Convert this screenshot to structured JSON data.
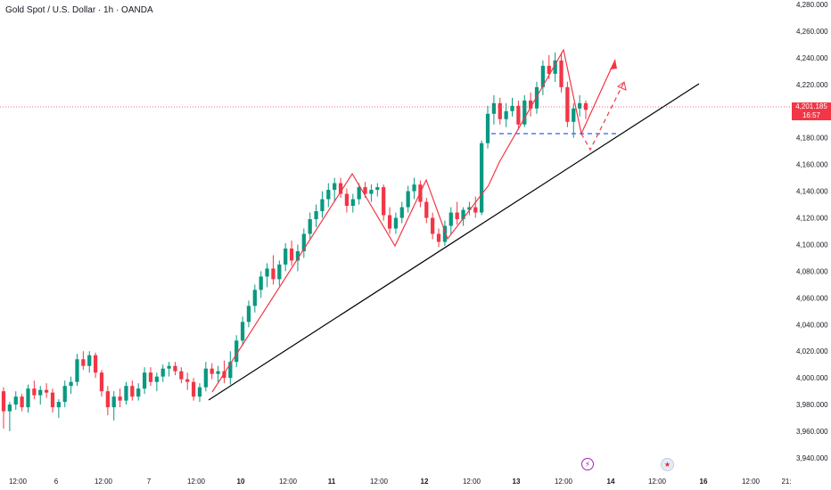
{
  "header": {
    "symbol": "Gold Spot / U.S. Dollar · 1h · OANDA"
  },
  "price_badge": {
    "price": "4,201.185",
    "countdown": "16:57",
    "color": "#f23645"
  },
  "colors": {
    "up": "#089981",
    "down": "#f23645",
    "trendline": "#000000",
    "annotation": "#f23645",
    "support": "#2962ff",
    "axis_text": "#131722"
  },
  "icons": [
    "lightning-event-icon",
    "us-flag-event-icon"
  ],
  "chart_data": {
    "type": "candlestick",
    "title": "Gold Spot / U.S. Dollar · 1h · OANDA",
    "ylim": [
      3934,
      4282
    ],
    "y_ticks": [
      "4,280.000",
      "4,260.000",
      "4,240.000",
      "4,220.000",
      "4,200.000",
      "4,180.000",
      "4,160.000",
      "4,140.000",
      "4,120.000",
      "4,100.000",
      "4,080.000",
      "4,060.000",
      "4,040.000",
      "4,020.000",
      "4,000.000",
      "3,980.000",
      "3,960.000",
      "3,940.000"
    ],
    "x_ticks": [
      "12:00",
      "6",
      "12:00",
      "7",
      "12:00",
      "10",
      "12:00",
      "11",
      "12:00",
      "12",
      "12:00",
      "13",
      "12:00",
      "14",
      "12:00",
      "16",
      "12:00",
      "21:"
    ],
    "last_price": 4201.185,
    "candles_ohlc": [
      [
        3990,
        3993,
        3962,
        3975
      ],
      [
        3975,
        3982,
        3960,
        3980
      ],
      [
        3980,
        3990,
        3976,
        3986
      ],
      [
        3986,
        3988,
        3975,
        3978
      ],
      [
        3978,
        3995,
        3974,
        3992
      ],
      [
        3992,
        3998,
        3984,
        3987
      ],
      [
        3987,
        3994,
        3980,
        3991
      ],
      [
        3991,
        3996,
        3985,
        3989
      ],
      [
        3989,
        3992,
        3974,
        3978
      ],
      [
        3978,
        3984,
        3970,
        3982
      ],
      [
        3982,
        3998,
        3978,
        3994
      ],
      [
        3994,
        4001,
        3988,
        3997
      ],
      [
        3997,
        4018,
        3994,
        4014
      ],
      [
        4014,
        4020,
        4006,
        4009
      ],
      [
        4009,
        4020,
        4004,
        4017
      ],
      [
        4017,
        4019,
        4000,
        4004
      ],
      [
        4004,
        4006,
        3986,
        3990
      ],
      [
        3990,
        3994,
        3972,
        3978
      ],
      [
        3978,
        3990,
        3968,
        3986
      ],
      [
        3986,
        3992,
        3978,
        3983
      ],
      [
        3983,
        3997,
        3980,
        3994
      ],
      [
        3994,
        3998,
        3983,
        3986
      ],
      [
        3986,
        3996,
        3983,
        3992
      ],
      [
        3992,
        4008,
        3988,
        4004
      ],
      [
        4004,
        4008,
        3994,
        3997
      ],
      [
        3997,
        4004,
        3990,
        4001
      ],
      [
        4001,
        4010,
        3997,
        4007
      ],
      [
        4007,
        4012,
        4001,
        4009
      ],
      [
        4009,
        4012,
        4002,
        4005
      ],
      [
        4005,
        4008,
        3996,
        3999
      ],
      [
        3999,
        4004,
        3991,
        3997
      ],
      [
        3997,
        4000,
        3983,
        3986
      ],
      [
        3986,
        3996,
        3982,
        3993
      ],
      [
        3993,
        4012,
        3990,
        4007
      ],
      [
        4007,
        4011,
        3999,
        4003
      ],
      [
        4003,
        4009,
        3997,
        4005
      ],
      [
        4005,
        4013,
        3996,
        4000
      ],
      [
        4000,
        4020,
        3995,
        4012
      ],
      [
        4012,
        4032,
        4008,
        4028
      ],
      [
        4028,
        4046,
        4024,
        4042
      ],
      [
        4042,
        4058,
        4038,
        4054
      ],
      [
        4054,
        4070,
        4049,
        4066
      ],
      [
        4066,
        4080,
        4060,
        4076
      ],
      [
        4076,
        4086,
        4068,
        4082
      ],
      [
        4082,
        4092,
        4070,
        4074
      ],
      [
        4074,
        4088,
        4069,
        4085
      ],
      [
        4085,
        4101,
        4080,
        4097
      ],
      [
        4097,
        4103,
        4084,
        4088
      ],
      [
        4088,
        4100,
        4080,
        4095
      ],
      [
        4095,
        4112,
        4090,
        4108
      ],
      [
        4108,
        4124,
        4104,
        4119
      ],
      [
        4119,
        4130,
        4113,
        4125
      ],
      [
        4125,
        4140,
        4120,
        4134
      ],
      [
        4134,
        4146,
        4128,
        4141
      ],
      [
        4141,
        4150,
        4132,
        4146
      ],
      [
        4146,
        4150,
        4135,
        4138
      ],
      [
        4138,
        4142,
        4124,
        4129
      ],
      [
        4129,
        4138,
        4124,
        4134
      ],
      [
        4134,
        4146,
        4130,
        4143
      ],
      [
        4143,
        4147,
        4135,
        4138
      ],
      [
        4138,
        4145,
        4132,
        4141
      ],
      [
        4141,
        4146,
        4136,
        4143
      ],
      [
        4143,
        4145,
        4118,
        4122
      ],
      [
        4122,
        4128,
        4108,
        4112
      ],
      [
        4112,
        4124,
        4108,
        4120
      ],
      [
        4120,
        4132,
        4116,
        4128
      ],
      [
        4128,
        4144,
        4124,
        4140
      ],
      [
        4140,
        4150,
        4134,
        4145
      ],
      [
        4145,
        4148,
        4128,
        4132
      ],
      [
        4132,
        4135,
        4116,
        4120
      ],
      [
        4120,
        4124,
        4104,
        4108
      ],
      [
        4108,
        4112,
        4098,
        4102
      ],
      [
        4102,
        4118,
        4099,
        4114
      ],
      [
        4114,
        4128,
        4108,
        4124
      ],
      [
        4124,
        4132,
        4115,
        4119
      ],
      [
        4119,
        4128,
        4114,
        4126
      ],
      [
        4126,
        4132,
        4122,
        4128
      ],
      [
        4128,
        4136,
        4120,
        4124
      ],
      [
        4124,
        4178,
        4122,
        4176
      ],
      [
        4176,
        4204,
        4172,
        4198
      ],
      [
        4198,
        4212,
        4190,
        4206
      ],
      [
        4206,
        4210,
        4190,
        4194
      ],
      [
        4194,
        4206,
        4188,
        4200
      ],
      [
        4200,
        4210,
        4196,
        4204
      ],
      [
        4204,
        4208,
        4186,
        4190
      ],
      [
        4190,
        4212,
        4188,
        4208
      ],
      [
        4208,
        4214,
        4196,
        4202
      ],
      [
        4202,
        4222,
        4198,
        4218
      ],
      [
        4218,
        4238,
        4212,
        4234
      ],
      [
        4234,
        4242,
        4224,
        4228
      ],
      [
        4228,
        4244,
        4222,
        4238
      ],
      [
        4238,
        4244,
        4214,
        4218
      ],
      [
        4218,
        4222,
        4188,
        4192
      ],
      [
        4192,
        4206,
        4180,
        4202
      ],
      [
        4202,
        4212,
        4196,
        4206
      ],
      [
        4206,
        4208,
        4194,
        4201
      ]
    ]
  }
}
